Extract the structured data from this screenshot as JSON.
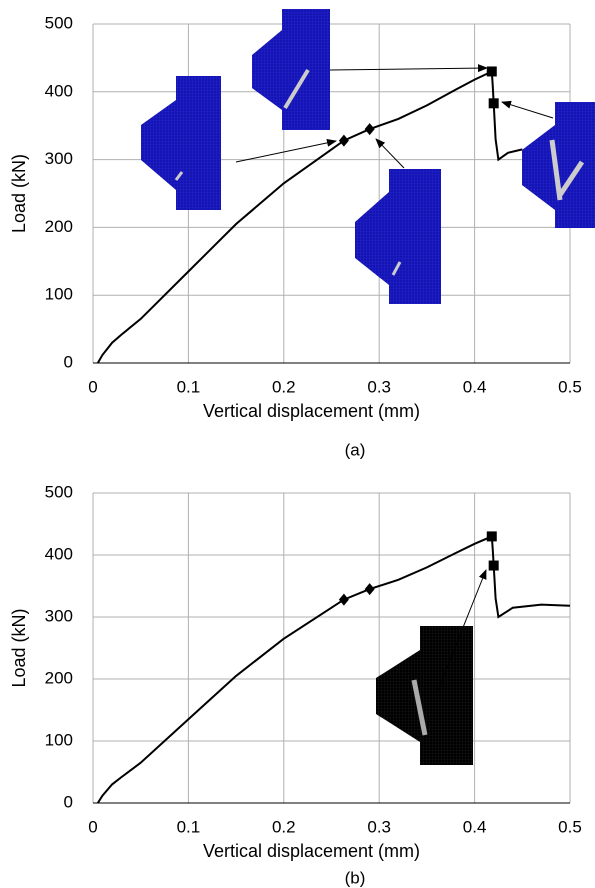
{
  "chart_data": [
    {
      "type": "line",
      "caption": "(a)",
      "x_label": "Vertical displacement (mm)",
      "y_label": "Load (kN)",
      "xlim": [
        0,
        0.5
      ],
      "ylim": [
        0,
        500
      ],
      "xticks": [
        0,
        0.1,
        0.2,
        0.3,
        0.4,
        0.5
      ],
      "yticks": [
        0,
        100,
        200,
        300,
        400,
        500
      ],
      "grid": true,
      "series": [
        {
          "color": "#000000",
          "x": [
            0.005,
            0.01,
            0.02,
            0.03,
            0.05,
            0.1,
            0.15,
            0.2,
            0.25,
            0.263,
            0.29,
            0.32,
            0.35,
            0.38,
            0.4,
            0.418,
            0.419,
            0.42,
            0.422,
            0.425,
            0.435,
            0.45
          ],
          "values": [
            0,
            12,
            30,
            42,
            65,
            135,
            205,
            265,
            315,
            328,
            345,
            360,
            380,
            403,
            418,
            430,
            410,
            383,
            330,
            300,
            310,
            315
          ]
        },
        {
          "color": "#000000",
          "marker": "diamond",
          "x": [
            0.263,
            0.29
          ],
          "values": [
            328,
            345
          ]
        },
        {
          "color": "#000000",
          "marker": "square",
          "x": [
            0.418,
            0.42
          ],
          "values": [
            430,
            383
          ]
        }
      ]
    },
    {
      "type": "line",
      "caption": "(b)",
      "x_label": "Vertical displacement (mm)",
      "y_label": "Load (kN)",
      "xlim": [
        0,
        0.5
      ],
      "ylim": [
        0,
        500
      ],
      "xticks": [
        0,
        0.1,
        0.2,
        0.3,
        0.4,
        0.5
      ],
      "yticks": [
        0,
        100,
        200,
        300,
        400,
        500
      ],
      "grid": true,
      "series": [
        {
          "color": "#000000",
          "x": [
            0.005,
            0.01,
            0.02,
            0.03,
            0.05,
            0.1,
            0.15,
            0.2,
            0.25,
            0.263,
            0.29,
            0.32,
            0.35,
            0.38,
            0.4,
            0.418,
            0.419,
            0.42,
            0.422,
            0.425,
            0.44,
            0.47,
            0.5
          ],
          "values": [
            0,
            12,
            30,
            42,
            65,
            135,
            205,
            265,
            315,
            328,
            345,
            360,
            380,
            403,
            418,
            430,
            410,
            383,
            330,
            300,
            315,
            320,
            318
          ]
        },
        {
          "color": "#000000",
          "marker": "diamond",
          "x": [
            0.263,
            0.29
          ],
          "values": [
            328,
            345
          ]
        },
        {
          "color": "#000000",
          "marker": "square",
          "x": [
            0.418,
            0.42
          ],
          "values": [
            430,
            383
          ]
        }
      ]
    }
  ]
}
